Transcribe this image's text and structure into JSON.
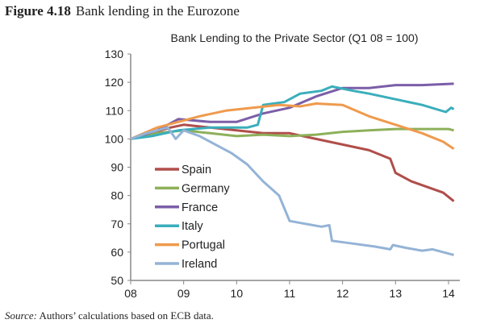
{
  "figure": {
    "number": "Figure 4.18",
    "caption": "Bank lending in the Eurozone"
  },
  "source": {
    "label": "Source:",
    "text": " Authors’ calculations based on ECB data."
  },
  "chart_data": {
    "type": "line",
    "title": "Bank Lending to the Private Sector (Q1 08 = 100)",
    "xlabel": "",
    "ylabel": "",
    "xlim": [
      2008,
      2014.1
    ],
    "ylim": [
      50,
      130
    ],
    "xticks": [
      {
        "v": 2008,
        "label": "08"
      },
      {
        "v": 2009,
        "label": "09"
      },
      {
        "v": 2010,
        "label": "10"
      },
      {
        "v": 2011,
        "label": "11"
      },
      {
        "v": 2012,
        "label": "12"
      },
      {
        "v": 2013,
        "label": "13"
      },
      {
        "v": 2014,
        "label": "14"
      }
    ],
    "yticks": [
      50,
      60,
      70,
      80,
      90,
      100,
      110,
      120,
      130
    ],
    "grid": false,
    "legend": "bottom-left",
    "series": [
      {
        "name": "Spain",
        "color": "#b04e4a",
        "x": [
          2008,
          2008.75,
          2009,
          2009.5,
          2010,
          2010.5,
          2011,
          2011.5,
          2012,
          2012.5,
          2012.9,
          2013,
          2013.3,
          2013.6,
          2013.9,
          2014.1
        ],
        "y": [
          100,
          104,
          105,
          104,
          103,
          102,
          102,
          100,
          98,
          96,
          93,
          88,
          85,
          83,
          81,
          78
        ]
      },
      {
        "name": "Germany",
        "color": "#8db05a",
        "x": [
          2008,
          2008.5,
          2009,
          2009.5,
          2010,
          2010.5,
          2011,
          2011.5,
          2012,
          2012.5,
          2013,
          2013.5,
          2014,
          2014.1
        ],
        "y": [
          100,
          102,
          103,
          102,
          101,
          101.5,
          101,
          101.5,
          102.5,
          103,
          103.5,
          103.5,
          103.5,
          103
        ]
      },
      {
        "name": "France",
        "color": "#7b5ea8",
        "x": [
          2008,
          2008.5,
          2008.9,
          2009.5,
          2010,
          2010.5,
          2011,
          2011.5,
          2012,
          2012.5,
          2013,
          2013.5,
          2014.1
        ],
        "y": [
          100,
          103,
          107,
          106,
          106,
          109,
          111,
          115,
          118,
          118,
          119,
          119,
          119.5
        ]
      },
      {
        "name": "Italy",
        "color": "#3aaebb",
        "x": [
          2008,
          2008.4,
          2008.9,
          2009.5,
          2010.2,
          2010.4,
          2010.5,
          2010.9,
          2011.2,
          2011.6,
          2011.8,
          2012.2,
          2012.5,
          2013,
          2013.5,
          2013.95,
          2014.05,
          2014.1
        ],
        "y": [
          100,
          101,
          103,
          104,
          104,
          105,
          112,
          113,
          116,
          117,
          118.5,
          117,
          116,
          114,
          112,
          109.5,
          111,
          110.5
        ]
      },
      {
        "name": "Portugal",
        "color": "#ef9a4d",
        "x": [
          2008,
          2008.5,
          2008.9,
          2009.3,
          2009.8,
          2010.3,
          2010.8,
          2011.2,
          2011.5,
          2012,
          2012.5,
          2013,
          2013.5,
          2013.9,
          2014.1
        ],
        "y": [
          100,
          104,
          106,
          108,
          110,
          111,
          112,
          111.5,
          112.5,
          112,
          108,
          105,
          102,
          99,
          96.5
        ]
      },
      {
        "name": "Ireland",
        "color": "#94b3d6",
        "x": [
          2008,
          2008.3,
          2008.7,
          2008.85,
          2009,
          2009.3,
          2009.6,
          2009.9,
          2010.2,
          2010.5,
          2010.8,
          2011,
          2011.3,
          2011.6,
          2011.75,
          2011.8,
          2012.2,
          2012.6,
          2012.9,
          2012.95,
          2013.2,
          2013.5,
          2013.7,
          2014.1
        ],
        "y": [
          100,
          102,
          104,
          100,
          103,
          101,
          98,
          95,
          91,
          85,
          80,
          71,
          70,
          69,
          69.5,
          64,
          63,
          62,
          61,
          62.5,
          61.5,
          60.5,
          61,
          59
        ]
      }
    ]
  }
}
